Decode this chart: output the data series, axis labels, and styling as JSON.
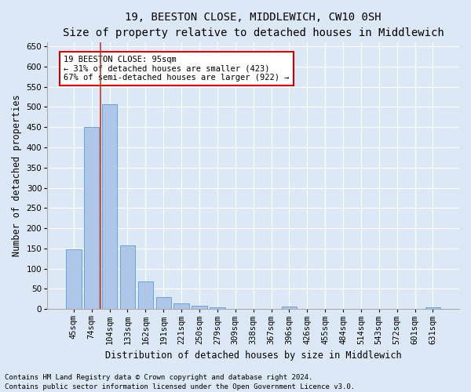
{
  "title_line1": "19, BEESTON CLOSE, MIDDLEWICH, CW10 0SH",
  "title_line2": "Size of property relative to detached houses in Middlewich",
  "xlabel": "Distribution of detached houses by size in Middlewich",
  "ylabel": "Number of detached properties",
  "categories": [
    "45sqm",
    "74sqm",
    "104sqm",
    "133sqm",
    "162sqm",
    "191sqm",
    "221sqm",
    "250sqm",
    "279sqm",
    "309sqm",
    "338sqm",
    "367sqm",
    "396sqm",
    "426sqm",
    "455sqm",
    "484sqm",
    "514sqm",
    "543sqm",
    "572sqm",
    "601sqm",
    "631sqm"
  ],
  "values": [
    148,
    450,
    507,
    158,
    68,
    30,
    14,
    9,
    4,
    0,
    0,
    0,
    6,
    0,
    0,
    0,
    0,
    0,
    0,
    0,
    5
  ],
  "bar_color": "#aec6e8",
  "bar_edge_color": "#5b9bd5",
  "vline_color": "#c0392b",
  "annotation_text": "19 BEESTON CLOSE: 95sqm\n← 31% of detached houses are smaller (423)\n67% of semi-detached houses are larger (922) →",
  "annotation_box_color": "white",
  "annotation_box_edge_color": "#cc0000",
  "ylim": [
    0,
    660
  ],
  "yticks": [
    0,
    50,
    100,
    150,
    200,
    250,
    300,
    350,
    400,
    450,
    500,
    550,
    600,
    650
  ],
  "background_color": "#dce8f5",
  "plot_background_color": "#dce8f5",
  "grid_color": "white",
  "footer_line1": "Contains HM Land Registry data © Crown copyright and database right 2024.",
  "footer_line2": "Contains public sector information licensed under the Open Government Licence v3.0.",
  "title_fontsize": 10,
  "subtitle_fontsize": 9,
  "tick_fontsize": 7.5,
  "ylabel_fontsize": 8.5,
  "xlabel_fontsize": 8.5,
  "footer_fontsize": 6.5,
  "annotation_fontsize": 7.5
}
